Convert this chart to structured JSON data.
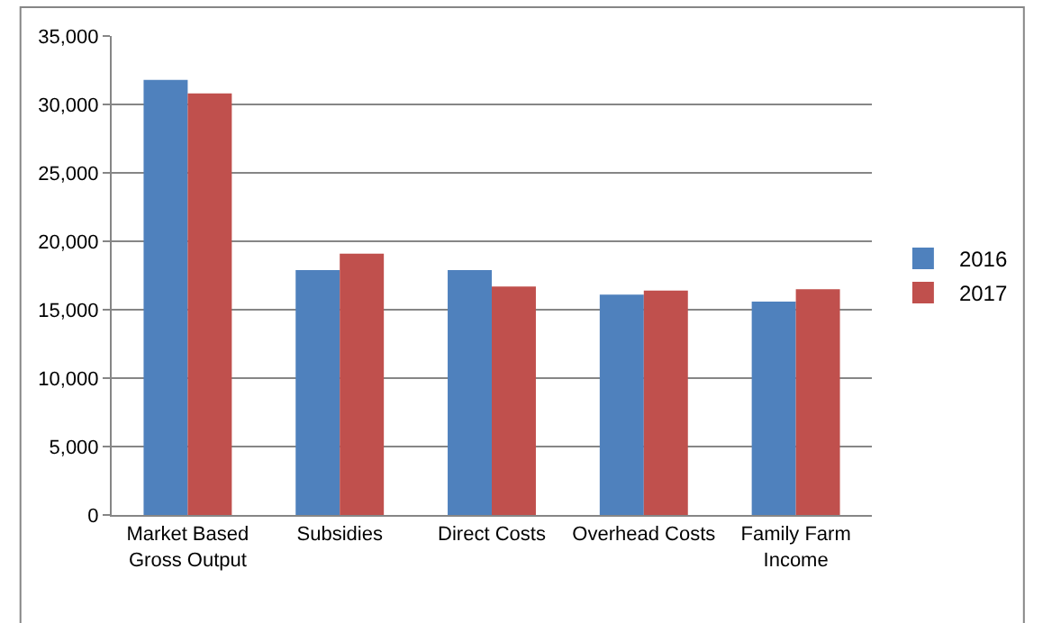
{
  "chart_data": {
    "type": "bar",
    "categories": [
      "Market Based\nGross Output",
      "Subsidies",
      "Direct Costs",
      "Overhead Costs",
      "Family Farm\nIncome"
    ],
    "series": [
      {
        "name": "2016",
        "color": "#4f81bd",
        "values": [
          31800,
          17900,
          17900,
          16100,
          15600
        ]
      },
      {
        "name": "2017",
        "color": "#c0504d",
        "values": [
          30800,
          19100,
          16700,
          16400,
          16500
        ]
      }
    ],
    "ylim": [
      0,
      35000
    ],
    "yticks": [
      {
        "value": 0,
        "label": "0"
      },
      {
        "value": 5000,
        "label": "5,000"
      },
      {
        "value": 10000,
        "label": "10,000"
      },
      {
        "value": 15000,
        "label": "15,000"
      },
      {
        "value": 20000,
        "label": "20,000"
      },
      {
        "value": 25000,
        "label": "25,000"
      },
      {
        "value": 30000,
        "label": "30,000"
      },
      {
        "value": 35000,
        "label": "35,000"
      }
    ],
    "grid": "y",
    "legend": "right"
  }
}
